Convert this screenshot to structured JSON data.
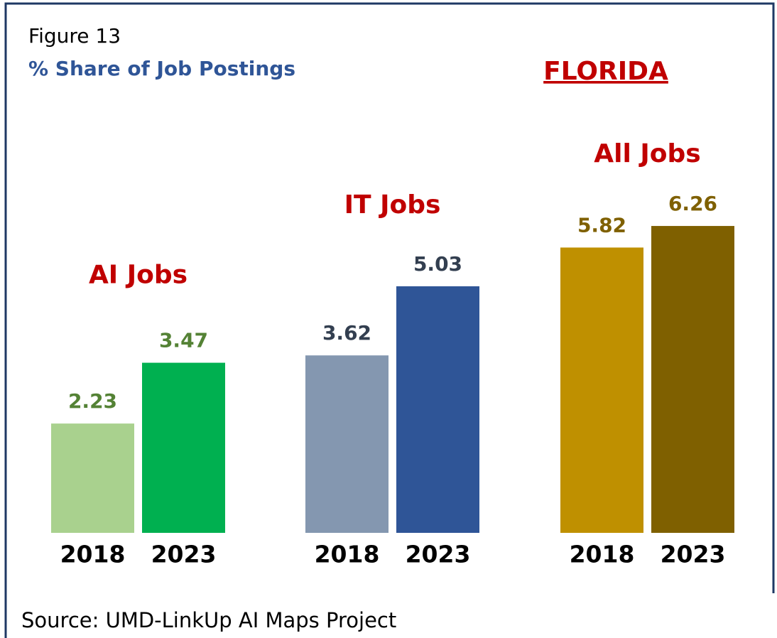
{
  "chart_data": {
    "type": "bar",
    "title": "Figure 13",
    "subtitle": "% Share of Job Postings",
    "annotation": "FLORIDA",
    "source": "Source: UMD-LinkUp AI Maps Project",
    "groups": [
      {
        "name": "AI Jobs",
        "categories": [
          "2018",
          "2023"
        ],
        "values": [
          2.23,
          3.47
        ],
        "colors": [
          "#a9d18e",
          "#00b050"
        ],
        "label_color": "#548235"
      },
      {
        "name": "IT Jobs",
        "categories": [
          "2018",
          "2023"
        ],
        "values": [
          3.62,
          5.03
        ],
        "colors": [
          "#8497b0",
          "#2f5597"
        ],
        "label_color": "#333f50"
      },
      {
        "name": "All Jobs",
        "categories": [
          "2018",
          "2023"
        ],
        "values": [
          5.82,
          6.26
        ],
        "colors": [
          "#bf9000",
          "#7f6000"
        ],
        "label_color": "#7f6000"
      }
    ]
  }
}
